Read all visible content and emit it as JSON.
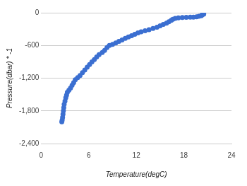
{
  "chart_data": {
    "type": "scatter",
    "x_label": "Temperature(degC)",
    "y_label": "Pressure(dbar) * -1",
    "color": "#3b6fd1",
    "marker": "circle",
    "grid": true,
    "xlim": [
      0,
      24
    ],
    "xticks": [
      0,
      6,
      12,
      18,
      24
    ],
    "ylim": [
      -2400,
      0
    ],
    "yticks": [
      0,
      -600,
      {
        "value": -1200,
        "label": "-1,200"
      },
      {
        "value": -1800,
        "label": "-1,800"
      },
      {
        "value": -2400,
        "label": "-2,400"
      }
    ],
    "x": [
      20.5,
      20.4,
      20.5,
      20.3,
      20.2,
      19.9,
      19.6,
      19.2,
      18.8,
      18.3,
      17.8,
      17.3,
      16.9,
      16.6,
      16.4,
      16.1,
      15.8,
      15.4,
      15.0,
      14.6,
      14.1,
      13.6,
      13.1,
      12.6,
      12.2,
      11.8,
      11.4,
      11.0,
      10.6,
      10.2,
      9.8,
      9.4,
      9.0,
      8.6,
      8.3,
      8.0,
      7.7,
      7.3,
      7.0,
      6.7,
      6.4,
      6.1,
      5.8,
      5.5,
      5.2,
      4.9,
      4.6,
      4.3,
      4.1,
      3.9,
      3.7,
      3.5,
      3.3,
      3.2,
      3.1,
      3.0,
      2.9,
      2.85,
      2.8,
      2.75,
      2.7,
      2.65,
      2.6
    ],
    "values": [
      0,
      -10,
      -25,
      -40,
      -55,
      -65,
      -75,
      -80,
      -82,
      -85,
      -88,
      -95,
      -105,
      -120,
      -140,
      -165,
      -190,
      -215,
      -240,
      -265,
      -290,
      -310,
      -330,
      -350,
      -370,
      -395,
      -420,
      -445,
      -470,
      -500,
      -525,
      -555,
      -580,
      -600,
      -640,
      -690,
      -730,
      -770,
      -810,
      -860,
      -900,
      -950,
      -1000,
      -1050,
      -1100,
      -1150,
      -1190,
      -1230,
      -1280,
      -1330,
      -1380,
      -1420,
      -1460,
      -1510,
      -1560,
      -1620,
      -1680,
      -1740,
      -1800,
      -1860,
      -1920,
      -1970,
      -2000
    ]
  }
}
